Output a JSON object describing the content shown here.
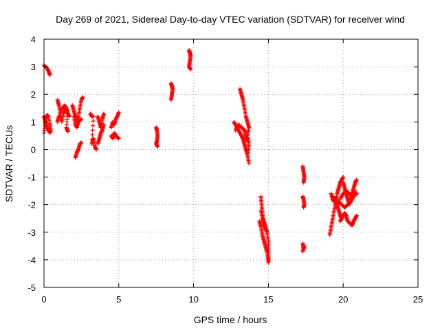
{
  "chart_data": {
    "type": "scatter",
    "title": "Day 269 of 2021, Sidereal Day-to-day VTEC variation (SDTVAR) for receiver wind",
    "xlabel": "GPS time / hours",
    "ylabel": "SDTVAR / TECUs",
    "xlim": [
      0,
      25
    ],
    "ylim": [
      -5,
      4
    ],
    "xticks": [
      "0",
      "5",
      "10",
      "15",
      "20",
      "25"
    ],
    "yticks": [
      "-5",
      "-4",
      "-3",
      "-2",
      "-1",
      "0",
      "1",
      "2",
      "3",
      "4"
    ],
    "grid": true,
    "marker": "plus",
    "color": "#ff0000",
    "series": [
      {
        "name": "SDTVAR",
        "segments": [
          [
            [
              0.0,
              3.05
            ],
            [
              0.1,
              3.0
            ],
            [
              0.2,
              2.95
            ],
            [
              0.3,
              2.85
            ],
            [
              0.4,
              2.7
            ]
          ],
          [
            [
              0.0,
              0.6
            ],
            [
              0.1,
              1.1
            ],
            [
              0.2,
              1.25
            ],
            [
              0.3,
              1.2
            ],
            [
              0.4,
              0.9
            ],
            [
              0.45,
              0.65
            ]
          ],
          [
            [
              0.0,
              1.2
            ],
            [
              0.1,
              1.0
            ],
            [
              0.2,
              0.8
            ],
            [
              0.3,
              0.7
            ],
            [
              0.4,
              0.6
            ]
          ],
          [
            [
              0.9,
              1.8
            ],
            [
              1.0,
              1.6
            ],
            [
              1.1,
              1.3
            ],
            [
              1.2,
              1.0
            ],
            [
              1.3,
              1.3
            ],
            [
              1.4,
              1.5
            ],
            [
              1.5,
              1.4
            ],
            [
              1.6,
              1.3
            ],
            [
              1.7,
              1.2
            ]
          ],
          [
            [
              0.9,
              1.0
            ],
            [
              1.0,
              1.2
            ],
            [
              1.2,
              1.5
            ],
            [
              1.4,
              1.6
            ],
            [
              1.6,
              1.4
            ],
            [
              1.5,
              0.8
            ],
            [
              1.6,
              0.65
            ]
          ],
          [
            [
              1.9,
              1.6
            ],
            [
              2.0,
              1.4
            ],
            [
              2.1,
              1.2
            ],
            [
              2.2,
              1.0
            ],
            [
              2.3,
              1.2
            ],
            [
              2.4,
              1.5
            ],
            [
              2.5,
              1.8
            ],
            [
              2.6,
              1.9
            ]
          ],
          [
            [
              2.0,
              1.2
            ],
            [
              2.1,
              0.9
            ],
            [
              2.2,
              0.8
            ],
            [
              2.3,
              1.0
            ],
            [
              2.5,
              1.1
            ]
          ],
          [
            [
              2.1,
              -0.3
            ],
            [
              2.2,
              -0.1
            ],
            [
              2.3,
              0.0
            ],
            [
              2.4,
              0.2
            ],
            [
              2.5,
              0.25
            ]
          ],
          [
            [
              3.1,
              1.3
            ],
            [
              3.2,
              1.2
            ],
            [
              3.3,
              1.2
            ],
            [
              3.2,
              0.2
            ],
            [
              3.3,
              0.4
            ],
            [
              3.4,
              0.1
            ],
            [
              3.5,
              0.0
            ]
          ],
          [
            [
              3.6,
              1.2
            ],
            [
              3.7,
              1.0
            ],
            [
              3.8,
              0.8
            ],
            [
              3.9,
              1.1
            ],
            [
              4.0,
              1.3
            ]
          ],
          [
            [
              3.6,
              0.2
            ],
            [
              3.7,
              0.4
            ],
            [
              3.8,
              0.6
            ],
            [
              3.9,
              0.7
            ],
            [
              4.0,
              0.9
            ]
          ],
          [
            [
              4.5,
              0.8
            ],
            [
              4.6,
              1.0
            ],
            [
              4.7,
              0.9
            ],
            [
              4.8,
              1.1
            ],
            [
              4.9,
              1.2
            ],
            [
              5.0,
              1.35
            ]
          ],
          [
            [
              4.5,
              0.5
            ],
            [
              4.6,
              0.4
            ],
            [
              4.7,
              0.6
            ],
            [
              4.8,
              0.5
            ],
            [
              4.9,
              0.45
            ],
            [
              5.0,
              0.4
            ]
          ],
          [
            [
              7.5,
              0.8
            ],
            [
              7.55,
              0.7
            ],
            [
              7.6,
              0.5
            ],
            [
              7.55,
              0.3
            ],
            [
              7.5,
              0.2
            ],
            [
              7.6,
              0.1
            ]
          ],
          [
            [
              8.5,
              2.4
            ],
            [
              8.55,
              2.3
            ],
            [
              8.6,
              2.2
            ],
            [
              8.55,
              2.0
            ],
            [
              8.5,
              1.8
            ]
          ],
          [
            [
              9.7,
              3.6
            ],
            [
              9.75,
              3.5
            ],
            [
              9.8,
              3.4
            ],
            [
              9.75,
              3.2
            ],
            [
              9.7,
              3.0
            ],
            [
              9.8,
              2.9
            ]
          ],
          [
            [
              12.7,
              1.0
            ],
            [
              12.8,
              0.9
            ],
            [
              12.9,
              0.8
            ],
            [
              13.0,
              0.7
            ],
            [
              13.1,
              0.6
            ],
            [
              13.2,
              0.5
            ],
            [
              13.3,
              0.4
            ],
            [
              13.4,
              0.2
            ],
            [
              13.5,
              0.0
            ],
            [
              13.6,
              -0.2
            ],
            [
              13.7,
              -0.5
            ]
          ],
          [
            [
              13.1,
              2.2
            ],
            [
              13.2,
              2.0
            ],
            [
              13.3,
              1.8
            ],
            [
              13.4,
              1.5
            ],
            [
              13.5,
              1.2
            ],
            [
              13.6,
              1.0
            ],
            [
              13.7,
              0.8
            ],
            [
              13.6,
              0.5
            ],
            [
              13.7,
              0.2
            ],
            [
              13.65,
              -0.1
            ]
          ],
          [
            [
              12.8,
              0.7
            ],
            [
              13.0,
              0.9
            ],
            [
              13.2,
              0.8
            ],
            [
              13.4,
              0.7
            ],
            [
              13.5,
              0.5
            ],
            [
              13.6,
              0.3
            ]
          ],
          [
            [
              14.5,
              -1.7
            ],
            [
              14.55,
              -2.0
            ],
            [
              14.6,
              -2.3
            ],
            [
              14.7,
              -2.6
            ],
            [
              14.8,
              -2.8
            ],
            [
              14.9,
              -3.0
            ],
            [
              15.0,
              -3.3
            ],
            [
              15.0,
              -3.6
            ],
            [
              15.0,
              -3.9
            ],
            [
              15.0,
              -4.1
            ]
          ],
          [
            [
              14.4,
              -2.6
            ],
            [
              14.5,
              -2.8
            ],
            [
              14.6,
              -3.1
            ],
            [
              14.7,
              -3.3
            ],
            [
              14.8,
              -3.5
            ],
            [
              14.9,
              -3.7
            ],
            [
              15.0,
              -4.0
            ]
          ],
          [
            [
              14.5,
              -2.2
            ],
            [
              14.6,
              -2.5
            ],
            [
              14.7,
              -2.7
            ],
            [
              14.8,
              -2.9
            ],
            [
              14.9,
              -2.95
            ]
          ],
          [
            [
              17.3,
              -0.6
            ],
            [
              17.35,
              -0.8
            ],
            [
              17.4,
              -1.0
            ],
            [
              17.35,
              -1.2
            ]
          ],
          [
            [
              17.3,
              -1.7
            ],
            [
              17.35,
              -1.8
            ],
            [
              17.4,
              -2.0
            ],
            [
              17.35,
              -2.1
            ]
          ],
          [
            [
              17.3,
              -3.4
            ],
            [
              17.35,
              -3.6
            ],
            [
              17.4,
              -3.5
            ],
            [
              17.3,
              -3.7
            ]
          ],
          [
            [
              19.1,
              -3.1
            ],
            [
              19.2,
              -2.8
            ],
            [
              19.3,
              -2.5
            ],
            [
              19.4,
              -2.2
            ],
            [
              19.5,
              -1.9
            ],
            [
              19.6,
              -1.6
            ],
            [
              19.7,
              -1.4
            ],
            [
              19.8,
              -1.2
            ],
            [
              19.9,
              -1.1
            ],
            [
              20.0,
              -1.0
            ]
          ],
          [
            [
              19.2,
              -1.6
            ],
            [
              19.3,
              -1.8
            ],
            [
              19.4,
              -1.9
            ],
            [
              19.5,
              -1.8
            ],
            [
              19.6,
              -2.0
            ],
            [
              19.7,
              -2.2
            ],
            [
              19.8,
              -2.4
            ],
            [
              19.9,
              -2.5
            ]
          ],
          [
            [
              20.0,
              -1.2
            ],
            [
              20.1,
              -1.4
            ],
            [
              20.2,
              -1.6
            ],
            [
              20.3,
              -1.8
            ],
            [
              20.4,
              -2.0
            ],
            [
              20.5,
              -1.8
            ],
            [
              20.6,
              -1.6
            ],
            [
              20.7,
              -1.4
            ],
            [
              20.8,
              -1.2
            ],
            [
              20.9,
              -1.1
            ]
          ],
          [
            [
              19.8,
              -2.6
            ],
            [
              19.9,
              -2.5
            ],
            [
              20.1,
              -2.3
            ],
            [
              20.2,
              -2.4
            ],
            [
              20.3,
              -2.6
            ],
            [
              20.5,
              -2.7
            ],
            [
              20.6,
              -2.75
            ],
            [
              20.7,
              -2.6
            ],
            [
              20.8,
              -2.5
            ],
            [
              20.9,
              -2.4
            ]
          ],
          [
            [
              19.3,
              -1.7
            ],
            [
              19.5,
              -1.8
            ],
            [
              19.7,
              -1.9
            ],
            [
              19.9,
              -2.0
            ],
            [
              20.1,
              -2.1
            ],
            [
              20.3,
              -2.0
            ],
            [
              20.5,
              -1.9
            ],
            [
              20.7,
              -1.7
            ],
            [
              20.9,
              -1.6
            ]
          ],
          [
            [
              19.8,
              -1.8
            ],
            [
              20.0,
              -1.6
            ],
            [
              20.2,
              -1.5
            ],
            [
              20.4,
              -1.6
            ],
            [
              20.6,
              -1.7
            ],
            [
              20.8,
              -1.5
            ]
          ]
        ]
      }
    ]
  }
}
